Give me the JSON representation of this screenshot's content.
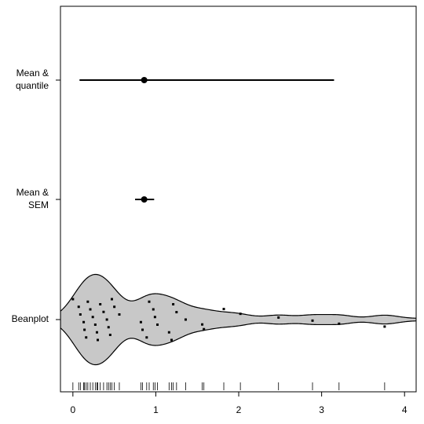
{
  "chart_data": {
    "type": "beanplot",
    "categories": [
      [
        "Mean &",
        "quantile"
      ],
      [
        "Mean &",
        "SEM"
      ],
      [
        "Beanplot"
      ]
    ],
    "summaries": [
      {
        "mean": 0.86,
        "low": 0.08,
        "high": 3.15
      },
      {
        "mean": 0.86,
        "low": 0.75,
        "high": 0.98
      }
    ],
    "points": [
      0,
      0.07,
      0.09,
      0.13,
      0.14,
      0.16,
      0.18,
      0.21,
      0.24,
      0.27,
      0.29,
      0.3,
      0.33,
      0.37,
      0.41,
      0.43,
      0.45,
      0.47,
      0.5,
      0.56,
      0.82,
      0.84,
      0.89,
      0.92,
      0.97,
      0.99,
      1.02,
      1.16,
      1.19,
      1.21,
      1.25,
      1.36,
      1.56,
      1.58,
      1.82,
      2.02,
      2.48,
      2.89,
      3.21,
      3.76
    ],
    "xlim": [
      -0.15,
      4.14
    ],
    "xticks": [
      0,
      1,
      2,
      3,
      4
    ],
    "color": "#c8c8c8"
  }
}
